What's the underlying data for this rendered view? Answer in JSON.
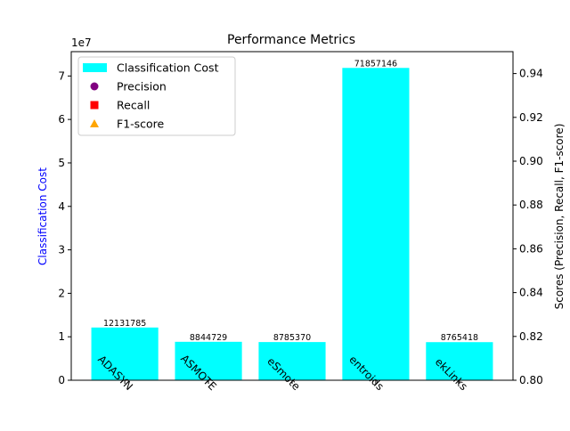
{
  "chart_data": {
    "type": "bar",
    "title": "Performance Metrics",
    "categories": [
      "ADASYN",
      "ASMOTE",
      "eSmote",
      "entroids",
      "ekLinks"
    ],
    "series": [
      {
        "name": "Classification Cost",
        "axis": "left",
        "values": [
          12131785,
          8844729,
          8785370,
          71857146,
          8765418
        ],
        "color": "#00ffff"
      }
    ],
    "data_labels": [
      "12131785",
      "8844729",
      "8785370",
      "71857146",
      "8765418"
    ],
    "legend": {
      "placement": "top-left",
      "entries": [
        {
          "label": "Classification Cost",
          "marker": "bar",
          "color": "#00ffff"
        },
        {
          "label": "Precision",
          "marker": "circle",
          "color": "#800080"
        },
        {
          "label": "Recall",
          "marker": "square",
          "color": "#ff0000"
        },
        {
          "label": "F1-score",
          "marker": "triangle",
          "color": "#ffa500"
        }
      ]
    },
    "y_left": {
      "label": "Classification Cost",
      "label_color": "#0000ff",
      "scale_note": "1e7",
      "multiplier": 10000000,
      "ylim": [
        0,
        75600000
      ],
      "ticks": [
        0,
        10000000,
        20000000,
        30000000,
        40000000,
        50000000,
        60000000,
        70000000
      ],
      "tick_labels": [
        "0",
        "1",
        "2",
        "3",
        "4",
        "5",
        "6",
        "7"
      ]
    },
    "y_right": {
      "label": "Scores (Precision, Recall, F1-score)",
      "ylim": [
        0.8,
        0.95
      ],
      "ticks": [
        0.8,
        0.82,
        0.84,
        0.86,
        0.88,
        0.9,
        0.92,
        0.94
      ],
      "tick_labels": [
        "0.80",
        "0.82",
        "0.84",
        "0.86",
        "0.88",
        "0.90",
        "0.92",
        "0.94"
      ]
    },
    "grid": false
  }
}
